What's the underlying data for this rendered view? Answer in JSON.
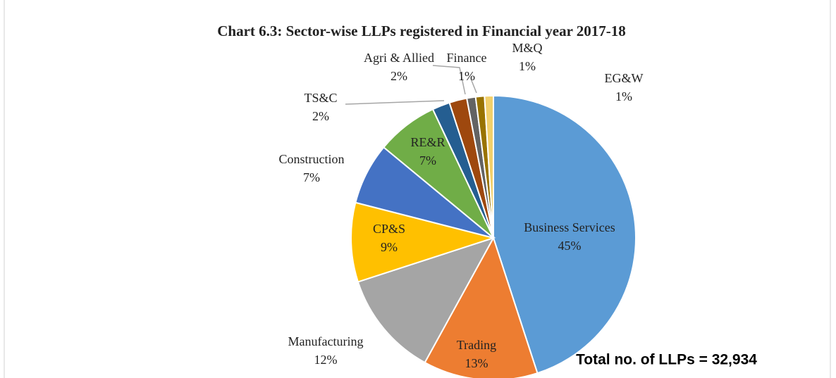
{
  "chart_data": {
    "type": "pie",
    "title": "Chart 6.3: Sector-wise LLPs registered in Financial year 2017-18",
    "categories": [
      "Business Services",
      "Trading",
      "Manufacturing",
      "CP&S",
      "Construction",
      "RE&R",
      "TS&C",
      "Agri & Allied",
      "Finance",
      "M&Q",
      "EG&W"
    ],
    "values": [
      45,
      13,
      12,
      9,
      7,
      7,
      2,
      2,
      1,
      1,
      1
    ],
    "value_labels": [
      "45%",
      "13%",
      "12%",
      "9%",
      "7%",
      "7%",
      "2%",
      "2%",
      "1%",
      "1%",
      "1%"
    ],
    "colors": [
      "#5b9bd5",
      "#ed7d31",
      "#a5a5a5",
      "#ffc000",
      "#4472c4",
      "#70ad47",
      "#255e91",
      "#9e480e",
      "#636363",
      "#997300",
      "#f2d06b"
    ],
    "annotation": "Total no. of LLPs = 32,934"
  }
}
